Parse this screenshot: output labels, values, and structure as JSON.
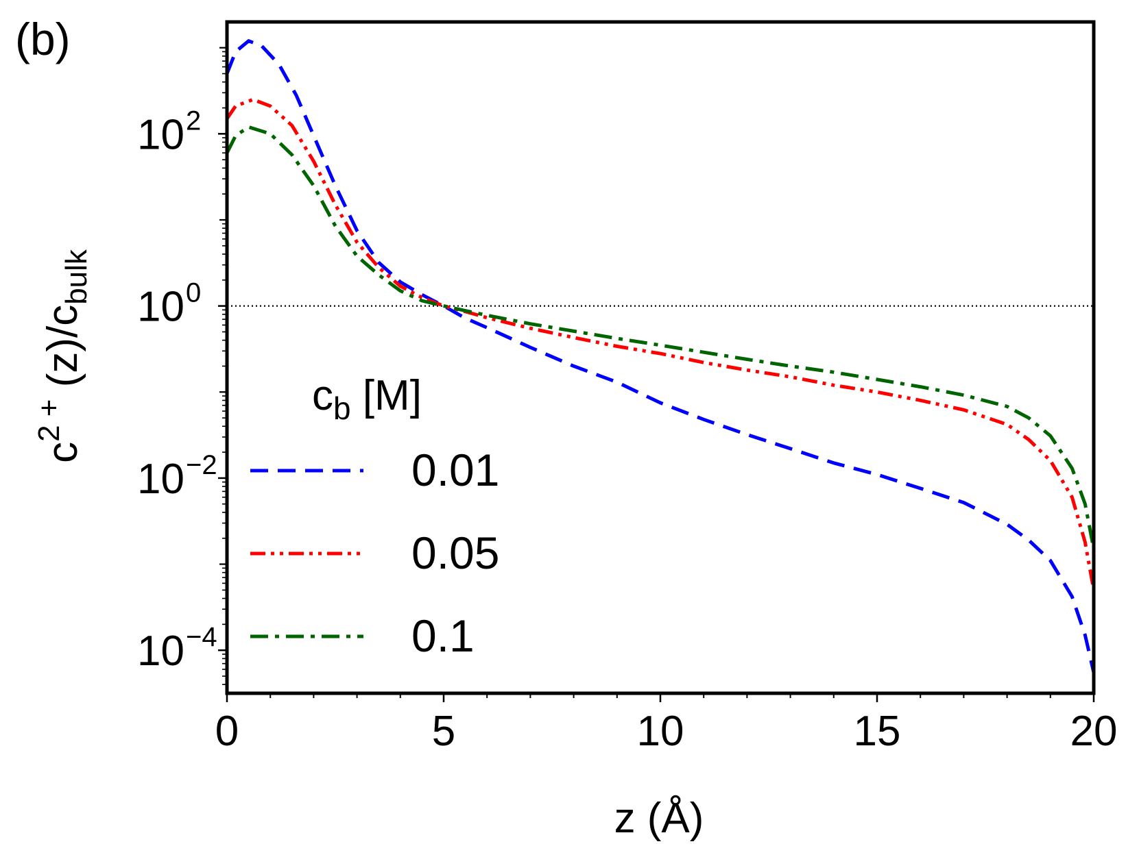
{
  "chart_data": {
    "type": "line",
    "panel_label": "(b)",
    "title": "",
    "xlabel": "z (Å)",
    "ylabel": {
      "parts": [
        {
          "text": "c",
          "style": "normal"
        },
        {
          "text": "2 +",
          "style": "super"
        },
        {
          "text": " (z)/c",
          "style": "normal"
        },
        {
          "text": "bulk",
          "style": "sub"
        }
      ]
    },
    "xlim": [
      0,
      20
    ],
    "ylim_log10": [
      -4.5,
      3.3
    ],
    "yscale": "log",
    "x_ticks": [
      {
        "value": 0,
        "label": "0"
      },
      {
        "value": 5,
        "label": "5"
      },
      {
        "value": 10,
        "label": "10"
      },
      {
        "value": 15,
        "label": "15"
      },
      {
        "value": 20,
        "label": "20"
      }
    ],
    "y_ticks": [
      {
        "exp": 2,
        "base": "10",
        "sup": "2"
      },
      {
        "exp": 0,
        "base": "10",
        "sup": "0"
      },
      {
        "exp": -2,
        "base": "10",
        "sup": "−2"
      },
      {
        "exp": -4,
        "base": "10",
        "sup": "−4"
      }
    ],
    "reference_line": {
      "y": 1,
      "style": "dotted",
      "color": "#000000"
    },
    "legend": {
      "title_main": "c",
      "title_sub": "b",
      "title_unit": " [M]",
      "placement": "lower-left",
      "entries": [
        "0.01",
        "0.05",
        "0.1"
      ]
    },
    "series": [
      {
        "name": "0.01",
        "color": "#0000ff",
        "dash": "dashed",
        "points": [
          [
            0,
            500
          ],
          [
            0.2,
            900
          ],
          [
            0.5,
            1200
          ],
          [
            0.8,
            1050
          ],
          [
            1.2,
            640
          ],
          [
            1.6,
            280
          ],
          [
            2,
            95
          ],
          [
            2.5,
            25
          ],
          [
            3,
            7.5
          ],
          [
            3.5,
            3.2
          ],
          [
            4,
            1.9
          ],
          [
            4.5,
            1.35
          ],
          [
            5,
            1.0
          ],
          [
            5.5,
            0.72
          ],
          [
            6,
            0.56
          ],
          [
            7,
            0.33
          ],
          [
            8,
            0.2
          ],
          [
            9,
            0.13
          ],
          [
            10,
            0.075
          ],
          [
            11,
            0.048
          ],
          [
            12,
            0.032
          ],
          [
            13,
            0.022
          ],
          [
            14,
            0.015
          ],
          [
            15,
            0.011
          ],
          [
            16,
            0.0076
          ],
          [
            17,
            0.0052
          ],
          [
            18,
            0.0029
          ],
          [
            18.5,
            0.0019
          ],
          [
            19,
            0.0011
          ],
          [
            19.5,
            0.00042
          ],
          [
            19.8,
            0.00015
          ],
          [
            20,
            5.5e-05
          ]
        ]
      },
      {
        "name": "0.05",
        "color": "#ff0000",
        "dash": "dash-dot-dot",
        "points": [
          [
            0,
            150
          ],
          [
            0.2,
            210
          ],
          [
            0.6,
            250
          ],
          [
            1,
            210
          ],
          [
            1.5,
            125
          ],
          [
            2,
            48
          ],
          [
            2.5,
            15
          ],
          [
            3,
            5.5
          ],
          [
            3.5,
            2.8
          ],
          [
            4,
            1.7
          ],
          [
            4.5,
            1.25
          ],
          [
            5,
            1.0
          ],
          [
            5.5,
            0.86
          ],
          [
            6,
            0.73
          ],
          [
            7,
            0.55
          ],
          [
            8,
            0.43
          ],
          [
            9,
            0.34
          ],
          [
            10,
            0.28
          ],
          [
            11,
            0.22
          ],
          [
            12,
            0.18
          ],
          [
            13,
            0.15
          ],
          [
            14,
            0.12
          ],
          [
            15,
            0.1
          ],
          [
            16,
            0.08
          ],
          [
            17,
            0.062
          ],
          [
            18,
            0.042
          ],
          [
            18.5,
            0.028
          ],
          [
            19,
            0.016
          ],
          [
            19.5,
            0.006
          ],
          [
            19.8,
            0.0018
          ],
          [
            20,
            0.0005
          ]
        ]
      },
      {
        "name": "0.1",
        "color": "#006400",
        "dash": "dash-dot",
        "points": [
          [
            0,
            60
          ],
          [
            0.2,
            95
          ],
          [
            0.5,
            120
          ],
          [
            1,
            100
          ],
          [
            1.5,
            57
          ],
          [
            2,
            25
          ],
          [
            2.5,
            8.5
          ],
          [
            3,
            3.8
          ],
          [
            3.5,
            2.3
          ],
          [
            4,
            1.5
          ],
          [
            4.5,
            1.15
          ],
          [
            5,
            1.0
          ],
          [
            5.5,
            0.88
          ],
          [
            6,
            0.78
          ],
          [
            7,
            0.62
          ],
          [
            8,
            0.51
          ],
          [
            9,
            0.42
          ],
          [
            10,
            0.35
          ],
          [
            11,
            0.29
          ],
          [
            12,
            0.24
          ],
          [
            13,
            0.2
          ],
          [
            14,
            0.17
          ],
          [
            15,
            0.14
          ],
          [
            16,
            0.115
          ],
          [
            17,
            0.092
          ],
          [
            18,
            0.068
          ],
          [
            18.5,
            0.05
          ],
          [
            19,
            0.031
          ],
          [
            19.5,
            0.013
          ],
          [
            19.8,
            0.005
          ],
          [
            20,
            0.0015
          ]
        ]
      }
    ]
  }
}
